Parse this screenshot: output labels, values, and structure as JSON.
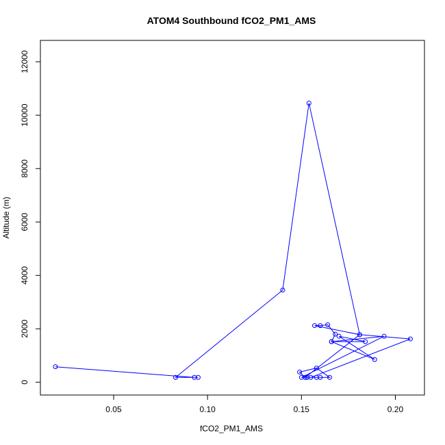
{
  "chart_data": {
    "type": "line",
    "title": "ATOM4 Southbound fCO2_PM1_AMS",
    "xlabel": "fCO2_PM1_AMS",
    "ylabel": "Altitude (m)",
    "xlim": [
      0.011,
      0.2155
    ],
    "ylim": [
      -480,
      12800
    ],
    "xticks": [
      0.05,
      0.1,
      0.15,
      0.2
    ],
    "xtick_labels": [
      "0.05",
      "0.10",
      "0.15",
      "0.20"
    ],
    "yticks": [
      0,
      2000,
      4000,
      6000,
      8000,
      10000,
      12000
    ],
    "ytick_labels": [
      "0",
      "2000",
      "4000",
      "6000",
      "8000",
      "10000",
      "12000"
    ],
    "grid": false,
    "marker": "open-circle",
    "series": [
      {
        "color": "#0000ff",
        "x": [
          0.153,
          0.158,
          0.16,
          0.165,
          0.158,
          0.149,
          0.152,
          0.181,
          0.208,
          0.155,
          0.153,
          0.15,
          0.194,
          0.166,
          0.189,
          0.17,
          0.184,
          0.166,
          0.168,
          0.164,
          0.16,
          0.157,
          0.181,
          0.154,
          0.14,
          0.083,
          0.095,
          0.093,
          0.019
        ],
        "y": [
          180,
          180,
          180,
          180,
          530,
          380,
          180,
          1780,
          1620,
          180,
          180,
          180,
          1720,
          1520,
          850,
          1720,
          1520,
          1520,
          1800,
          2150,
          2120,
          2120,
          1780,
          10450,
          3450,
          180,
          180,
          180,
          580
        ]
      }
    ]
  }
}
